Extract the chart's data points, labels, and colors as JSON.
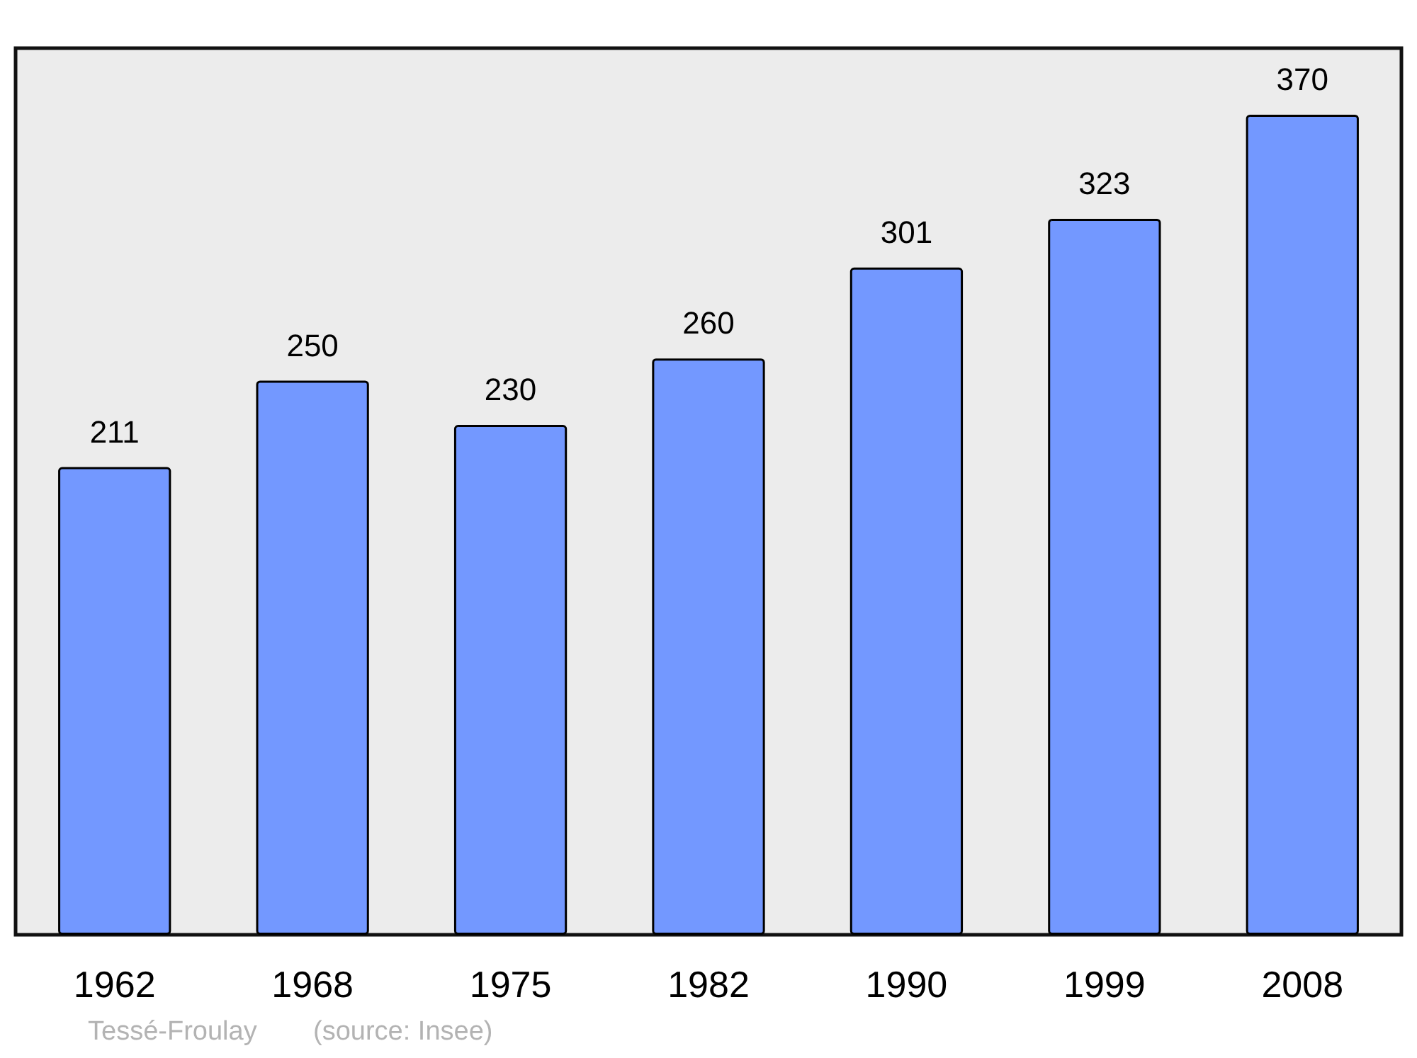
{
  "chart_data": {
    "type": "bar",
    "categories": [
      "1962",
      "1968",
      "1975",
      "1982",
      "1990",
      "1999",
      "2008"
    ],
    "values": [
      211,
      250,
      230,
      260,
      301,
      323,
      370
    ],
    "color": "#7398ff",
    "data_labels": true,
    "annotations": [
      "Tessé-Froulay",
      "(source: Insee)"
    ]
  }
}
